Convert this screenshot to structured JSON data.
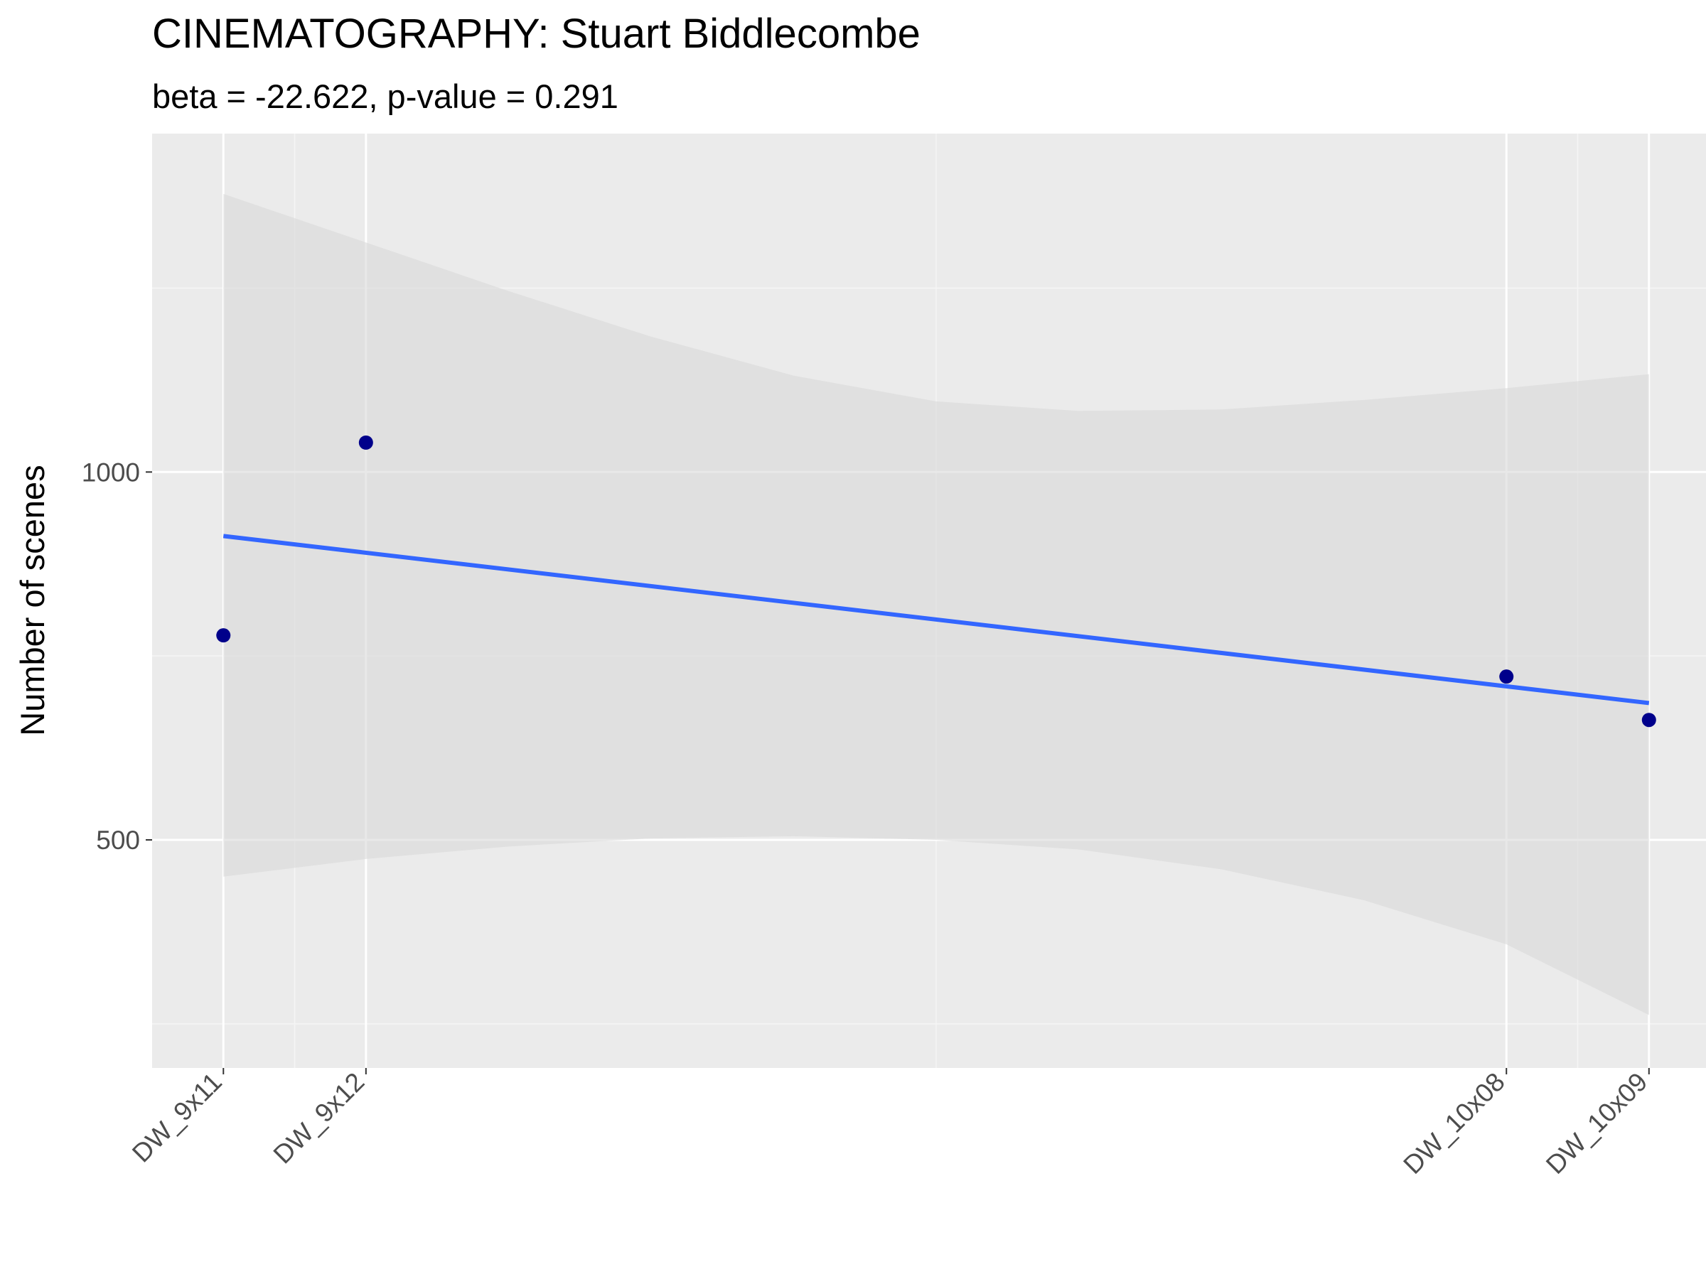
{
  "chart_data": {
    "type": "scatter",
    "title": "CINEMATOGRAPHY: Stuart Biddlecombe",
    "subtitle": "beta = -22.622, p-value = 0.291",
    "xlabel": "",
    "ylabel": "Number of scenes",
    "x_categories": [
      "DW_9x11",
      "DW_9x12",
      "DW_10x08",
      "DW_10x09"
    ],
    "x_index": [
      1,
      2,
      10,
      11
    ],
    "xlim": [
      0.5,
      11.4
    ],
    "ylim": [
      190,
      1460
    ],
    "y_ticks": [
      500,
      1000
    ],
    "points": [
      {
        "x": "DW_9x11",
        "y": 778
      },
      {
        "x": "DW_9x12",
        "y": 1040
      },
      {
        "x": "DW_10x08",
        "y": 722
      },
      {
        "x": "DW_10x09",
        "y": 663
      }
    ],
    "regression": {
      "x_range": [
        1,
        11
      ],
      "y_start": 913,
      "y_end": 686,
      "ci_lower": [
        [
          1,
          450
        ],
        [
          2,
          474
        ],
        [
          3,
          491
        ],
        [
          4,
          502
        ],
        [
          5,
          505
        ],
        [
          6,
          500
        ],
        [
          7,
          487
        ],
        [
          8,
          460
        ],
        [
          9,
          418
        ],
        [
          10,
          358
        ],
        [
          11,
          262
        ]
      ],
      "ci_upper": [
        [
          1,
          1378
        ],
        [
          2,
          1312
        ],
        [
          3,
          1246
        ],
        [
          4,
          1184
        ],
        [
          5,
          1131
        ],
        [
          6,
          1096
        ],
        [
          7,
          1083
        ],
        [
          8,
          1085
        ],
        [
          9,
          1098
        ],
        [
          10,
          1114
        ],
        [
          11,
          1133
        ]
      ]
    },
    "grid": true,
    "colors": {
      "panel_bg": "#ebebeb",
      "grid_major": "#ffffff",
      "grid_minor": "#f5f5f5",
      "ribbon": "#d9d9d9",
      "line": "#3366ff",
      "point": "#00008b"
    }
  }
}
